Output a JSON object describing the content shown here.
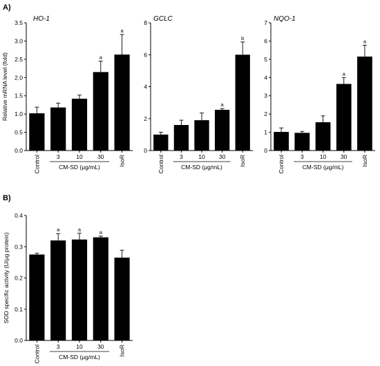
{
  "figure": {
    "panel_a_label": "A)",
    "panel_b_label": "B)"
  },
  "chart_data": [
    {
      "id": "ho1",
      "type": "bar",
      "title": "HO-1",
      "ylabel": "Relative mRNA level (fold)",
      "group_label": "CM-SD (μg/mL)",
      "categories": [
        "Control",
        "3",
        "10",
        "30",
        "IsoR"
      ],
      "values": [
        1.02,
        1.18,
        1.42,
        2.15,
        2.63
      ],
      "errors": [
        0.17,
        0.12,
        0.1,
        0.3,
        0.55
      ],
      "annotations": [
        "",
        "",
        "",
        "a",
        "a"
      ],
      "ylim": [
        0,
        3.5
      ],
      "yticks": [
        "0.0",
        "0.5",
        "1.0",
        "1.5",
        "2.0",
        "2.5",
        "3.0",
        "3.5"
      ],
      "grid": false,
      "bar_color": "#000000"
    },
    {
      "id": "gclc",
      "type": "bar",
      "title": "GCLC",
      "ylabel": "",
      "group_label": "CM-SD (μg/mL)",
      "categories": [
        "Control",
        "3",
        "10",
        "30",
        "IsoR"
      ],
      "values": [
        1.0,
        1.6,
        1.9,
        2.55,
        6.0
      ],
      "errors": [
        0.15,
        0.3,
        0.45,
        0.08,
        0.8
      ],
      "annotations": [
        "",
        "",
        "",
        "a",
        "b"
      ],
      "ylim": [
        0,
        8
      ],
      "yticks": [
        "0",
        "2",
        "4",
        "6",
        "8"
      ],
      "grid": false,
      "bar_color": "#000000"
    },
    {
      "id": "nqo1",
      "type": "bar",
      "title": "NQO-1",
      "ylabel": "",
      "group_label": "CM-SD (μg/mL)",
      "categories": [
        "Control",
        "3",
        "10",
        "30",
        "IsoR"
      ],
      "values": [
        1.02,
        0.97,
        1.55,
        3.65,
        5.15
      ],
      "errors": [
        0.22,
        0.08,
        0.35,
        0.35,
        0.62
      ],
      "annotations": [
        "",
        "",
        "",
        "a",
        "a"
      ],
      "ylim": [
        0,
        7
      ],
      "yticks": [
        "0",
        "1",
        "2",
        "3",
        "4",
        "5",
        "6",
        "7"
      ],
      "grid": false,
      "bar_color": "#000000"
    },
    {
      "id": "sod",
      "type": "bar",
      "title": "",
      "ylabel": "SOD specific activity (U/μg protein)",
      "group_label": "CM-SD (μg/mL)",
      "categories": [
        "Control",
        "3",
        "10",
        "30",
        "IsoR"
      ],
      "values": [
        0.275,
        0.32,
        0.323,
        0.33,
        0.265
      ],
      "errors": [
        0.004,
        0.022,
        0.02,
        0.004,
        0.024
      ],
      "annotations": [
        "",
        "a",
        "a",
        "a",
        ""
      ],
      "ylim": [
        0,
        0.4
      ],
      "yticks": [
        "0.0",
        "0.1",
        "0.2",
        "0.3",
        "0.4"
      ],
      "grid": false,
      "bar_color": "#000000"
    }
  ]
}
